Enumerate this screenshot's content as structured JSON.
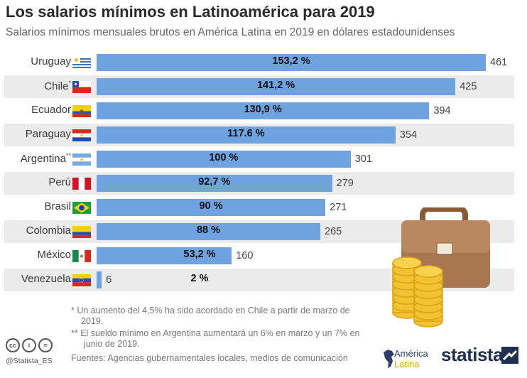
{
  "title": "Los salarios mínimos en Latinoamérica para 2019",
  "subtitle": "Salarios mínimos mensuales brutos en América Latina en 2019 en dólares estadounidenses",
  "colors": {
    "bar": "#6fa3e0",
    "stripe": "#ebebeb"
  },
  "chart_data": {
    "type": "bar",
    "orientation": "horizontal",
    "categories": [
      "Uruguay",
      "Chile",
      "Ecuador",
      "Paraguay",
      "Argentina",
      "Perú",
      "Brasil",
      "Colombia",
      "México",
      "Venezuela"
    ],
    "markers": [
      "",
      "*",
      "",
      "",
      "**",
      "",
      "",
      "",
      "",
      ""
    ],
    "values": [
      461,
      425,
      394,
      354,
      301,
      279,
      271,
      265,
      160,
      6
    ],
    "value_labels": [
      "461",
      "425",
      "394",
      "354",
      "301",
      "279",
      "271",
      "265",
      "160",
      "6"
    ],
    "percent_labels": [
      "153,2 %",
      "141,2 %",
      "130,9 %",
      "117.6 %",
      "100 %",
      "92,7 %",
      "90 %",
      "88 %",
      "53,2 %",
      "2 %"
    ],
    "flags": [
      "uruguay-flag-icon",
      "chile-flag-icon",
      "ecuador-flag-icon",
      "paraguay-flag-icon",
      "argentina-flag-icon",
      "peru-flag-icon",
      "brasil-flag-icon",
      "colombia-flag-icon",
      "mexico-flag-icon",
      "venezuela-flag-icon"
    ],
    "xlim": [
      0,
      461
    ],
    "grid": false,
    "legend": "none"
  },
  "notes": {
    "note1": "*  Un aumento del 4,5% ha sido acordado en Chile a partir de marzo de 2019.",
    "note2": "** El sueldo mínimo en Argentina aumentará un 6% en marzo y un 7% en junio de 2019."
  },
  "sources": "Fuentes: Agencias gubernamentales locales, medios de comunicación",
  "footer": {
    "cc_icons": [
      "cc",
      "i",
      "="
    ],
    "handle": "@Statista_ES",
    "partner_line1": "América",
    "partner_line2": "Latina",
    "brand": "statista"
  },
  "illustration": "briefcase-with-coins-icon"
}
